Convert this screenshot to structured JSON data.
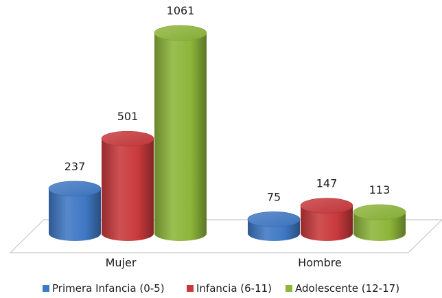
{
  "chart_data": {
    "type": "bar",
    "style": "3d-cylinder",
    "categories": [
      "Mujer",
      "Hombre"
    ],
    "series": [
      {
        "name": "Primera Infancia (0-5)",
        "values": [
          237,
          75
        ],
        "color": "#3f78c4"
      },
      {
        "name": "Infancia (6-11)",
        "values": [
          501,
          147
        ],
        "color": "#c8393c"
      },
      {
        "name": "Adolescente (12-17)",
        "values": [
          1061,
          113
        ],
        "color": "#8db53a"
      }
    ],
    "legend_placement": "bottom",
    "grid": false
  }
}
